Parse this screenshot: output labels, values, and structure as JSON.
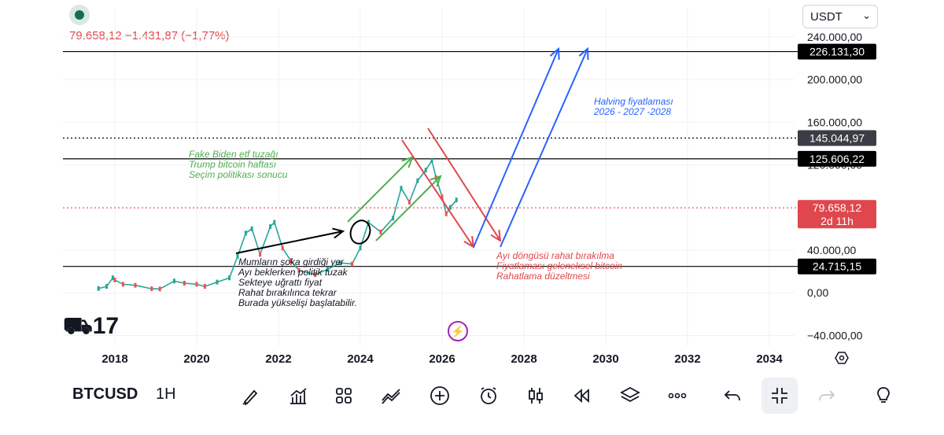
{
  "header": {
    "price_line": "79.658,12  −1.431,87 (−1,77%)",
    "currency": "USDT"
  },
  "chart_data": {
    "type": "line",
    "symbol": "BTCUSD",
    "interval": "1H",
    "ylim": [
      -50000,
      245000
    ],
    "y_ticks": [
      "−40.000,00",
      "0,00",
      "40.000,00",
      "120.000,00",
      "160.000,00",
      "200.000,00",
      "240.000,00"
    ],
    "y_tick_values": [
      -40000,
      0,
      40000,
      120000,
      160000,
      200000,
      240000
    ],
    "xlim": [
      2017.0,
      2035.5
    ],
    "x_ticks": [
      "2018",
      "2020",
      "2022",
      "2024",
      "2026",
      "2028",
      "2030",
      "2032",
      "2034"
    ],
    "x_tick_values": [
      2018,
      2020,
      2022,
      2024,
      2026,
      2028,
      2030,
      2032,
      2034
    ],
    "series": [
      {
        "x": [
          2017.6,
          2017.8,
          2017.95,
          2018.0,
          2018.2,
          2018.5,
          2018.9,
          2019.1,
          2019.45,
          2019.7,
          2020.0,
          2020.2,
          2020.5,
          2020.8,
          2021.0,
          2021.2,
          2021.35,
          2021.55,
          2021.8,
          2021.9,
          2022.1,
          2022.3,
          2022.5,
          2022.9,
          2023.2,
          2023.5,
          2023.8,
          2024.0,
          2024.2,
          2024.5,
          2024.8,
          2025.0,
          2025.2,
          2025.4,
          2025.6,
          2025.75,
          2025.85,
          2026.0,
          2026.1,
          2026.2,
          2026.35
        ],
        "y": [
          4000,
          6000,
          14000,
          12000,
          8000,
          7000,
          3800,
          3600,
          11000,
          9000,
          8000,
          6000,
          10000,
          14000,
          34000,
          56000,
          60000,
          36000,
          62000,
          66000,
          42000,
          30000,
          21000,
          17000,
          22000,
          28000,
          27000,
          42000,
          66000,
          57000,
          70000,
          98000,
          85000,
          105000,
          115000,
          124000,
          108000,
          90000,
          74000,
          80000,
          87000
        ]
      }
    ],
    "horizontal_lines": [
      {
        "value": 226131.3,
        "label": "226.131,30",
        "style": "solid",
        "color": "#000000"
      },
      {
        "value": 145044.97,
        "label": "145.044,97",
        "style": "dotted",
        "color": "#000000"
      },
      {
        "value": 125606.22,
        "label": "125.606,22",
        "style": "solid",
        "color": "#000000"
      },
      {
        "value": 79658.12,
        "label": "79.658,12",
        "sublabel": "2d 11h",
        "style": "dotted",
        "color": "#e0474c"
      },
      {
        "value": 24715.15,
        "label": "24.715,15",
        "style": "solid",
        "color": "#000000"
      }
    ],
    "annotations": [
      {
        "lines": [
          "Fake Biden etf tuzağı",
          "Trump bitcoin haftası",
          "Seçim politikası sonucu"
        ],
        "color": "#4caf50"
      },
      {
        "lines": [
          "Halving fiyatlaması",
          "2026 - 2027 -2028"
        ],
        "color": "#2962ff"
      },
      {
        "lines": [
          "Mumların şoka girdiği yer",
          "Ayı beklerken politik tuzak",
          "Sekteye uğrattı fiyat",
          "Rahat bırakılınca tekrar",
          "Burada yükselişi başlatabilir."
        ],
        "color": "#131722"
      },
      {
        "lines": [
          "Ayı döngüsü rahat bırakılma",
          "Fiyatlaması geleneksel bitcoin",
          "Rahatlama düzeltmesi"
        ],
        "color": "#e0474c"
      }
    ],
    "grid": true
  },
  "toolbar": {
    "symbol": "BTCUSD",
    "interval": "1H",
    "tools": [
      "brush-icon",
      "indicators-icon",
      "layout-grid-icon",
      "compare-icon",
      "add-icon",
      "alert-clock-icon",
      "candles-icon",
      "replay-icon",
      "layers-icon",
      "more-icon",
      "undo-icon",
      "collapse-icon",
      "redo-icon",
      "lightbulb-icon"
    ]
  },
  "colors": {
    "accent": "#2962ff",
    "red": "#e0474c",
    "green": "#4caf50",
    "purple": "#9c27b0"
  }
}
